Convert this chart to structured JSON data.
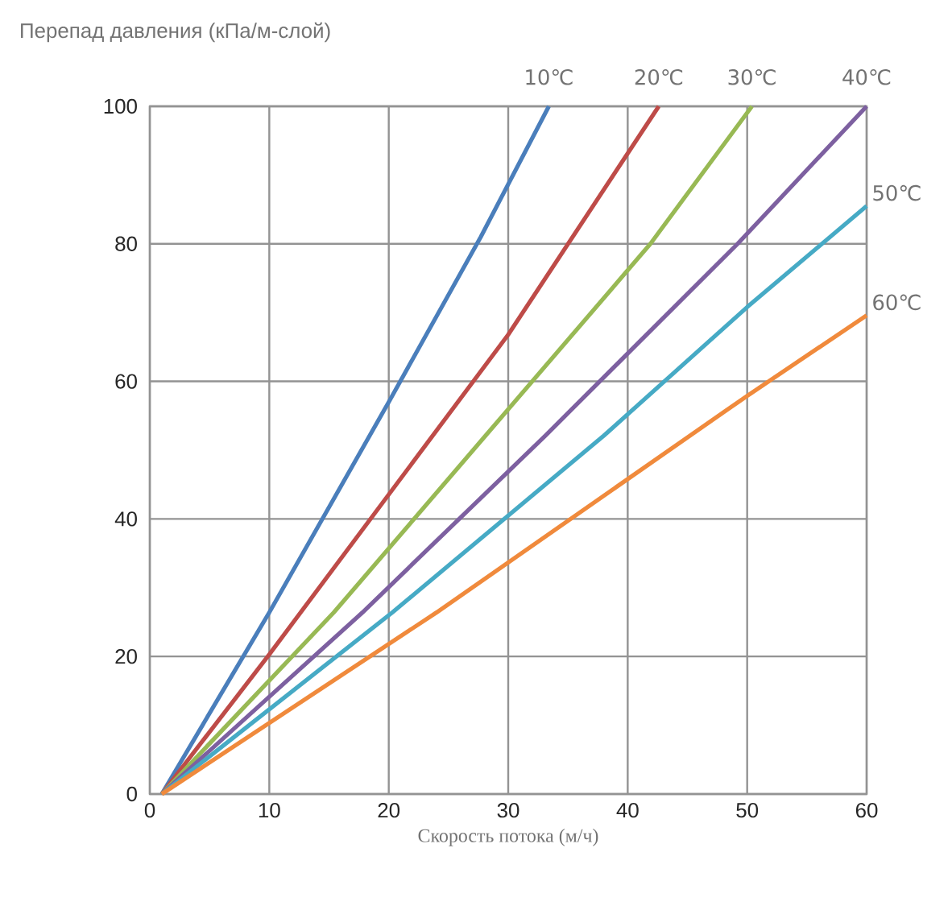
{
  "chart_data": {
    "type": "line",
    "ylabel": "Перепад давления (кПа/м-слой)",
    "xlabel": "Скорость потока (м/ч)",
    "xlim": [
      0,
      60
    ],
    "ylim": [
      0,
      100
    ],
    "xticks": [
      0,
      10,
      20,
      30,
      40,
      50,
      60
    ],
    "yticks": [
      0,
      20,
      40,
      60,
      80,
      100
    ],
    "grid": true,
    "legend": false,
    "marker": "none",
    "line_style": "solid",
    "series": [
      {
        "name": "10℃",
        "color": "#4a7ebb",
        "x": [
          1,
          10,
          20,
          27.7,
          33.4
        ],
        "values": [
          0,
          26.4,
          57,
          81,
          100
        ]
      },
      {
        "name": "20℃",
        "color": "#be4b48",
        "x": [
          1,
          10,
          30,
          42.6
        ],
        "values": [
          0,
          20.3,
          66.8,
          100
        ]
      },
      {
        "name": "30℃",
        "color": "#98b954",
        "x": [
          1,
          15.4,
          28.1,
          41.9,
          50.4
        ],
        "values": [
          0,
          26.4,
          52.1,
          80,
          100
        ]
      },
      {
        "name": "40℃",
        "color": "#7d60a0",
        "x": [
          1,
          17.8,
          33.1,
          49.2,
          60
        ],
        "values": [
          0,
          26.4,
          52.1,
          80,
          100
        ]
      },
      {
        "name": "50℃",
        "color": "#46aac5",
        "x": [
          1,
          20.3,
          38,
          50,
          60
        ],
        "values": [
          0,
          26.4,
          52.1,
          70.8,
          85.5
        ]
      },
      {
        "name": "60℃",
        "color": "#f08a3c",
        "x": [
          1,
          24,
          45.2,
          50,
          60
        ],
        "values": [
          0,
          26.4,
          52.1,
          57.9,
          69.6
        ]
      }
    ]
  }
}
